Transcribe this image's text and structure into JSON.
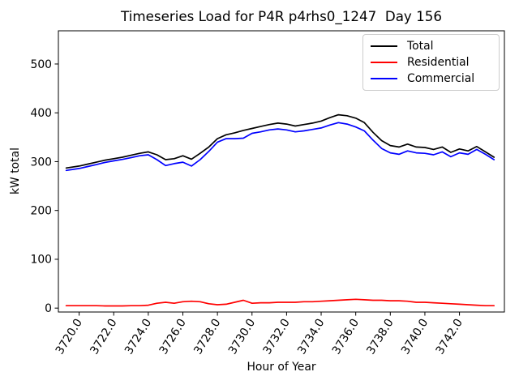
{
  "figure": {
    "background": "#ffffff"
  },
  "chart_data": {
    "type": "line",
    "title": "Timeseries Load for P4R p4rhs0_1247  Day 156",
    "xlabel": "Hour of Year",
    "ylabel": "kW total",
    "grid": false,
    "legend_position": "upper right",
    "xlim": [
      3718.8,
      3744.6
    ],
    "ylim": [
      -8,
      568
    ],
    "xticks": [
      3720,
      3722,
      3724,
      3726,
      3728,
      3730,
      3732,
      3734,
      3736,
      3738,
      3740,
      3742
    ],
    "xtick_labels": [
      "3720.0",
      "3722.0",
      "3724.0",
      "3726.0",
      "3728.0",
      "3730.0",
      "3732.0",
      "3734.0",
      "3736.0",
      "3738.0",
      "3740.0",
      "3742.0"
    ],
    "yticks": [
      0,
      100,
      200,
      300,
      400,
      500
    ],
    "ytick_labels": [
      "0",
      "100",
      "200",
      "300",
      "400",
      "500"
    ],
    "x": [
      3719.25,
      3720,
      3720.5,
      3721,
      3721.5,
      3722,
      3722.5,
      3723,
      3723.5,
      3724,
      3724.5,
      3725,
      3725.5,
      3726,
      3726.5,
      3727,
      3727.5,
      3728,
      3728.5,
      3729,
      3729.5,
      3730,
      3730.5,
      3731,
      3731.5,
      3732,
      3732.5,
      3733,
      3733.5,
      3734,
      3734.5,
      3735,
      3735.5,
      3736,
      3736.5,
      3737,
      3737.5,
      3738,
      3738.5,
      3739,
      3739.5,
      3740,
      3740.5,
      3741,
      3741.5,
      3742,
      3742.5,
      3743,
      3743.5,
      3744
    ],
    "series": [
      {
        "name": "Total",
        "color": "#000000",
        "values": [
          287,
          291,
          295,
          299,
          303,
          306,
          309,
          313,
          317,
          320,
          314,
          304,
          306,
          312,
          305,
          317,
          330,
          347,
          355,
          359,
          364,
          368,
          372,
          376,
          379,
          377,
          373,
          376,
          379,
          383,
          390,
          396,
          394,
          389,
          380,
          360,
          343,
          333,
          330,
          336,
          330,
          329,
          325,
          330,
          319,
          326,
          322,
          331,
          320,
          309
        ]
      },
      {
        "name": "Residential",
        "color": "#ff0000",
        "values": [
          5,
          5,
          5,
          5,
          4.5,
          4.5,
          4.5,
          5,
          5,
          6,
          10,
          12,
          10,
          13,
          14,
          13,
          9,
          7,
          8,
          12,
          16,
          10,
          11,
          11,
          12,
          12,
          12,
          13,
          13,
          14,
          15,
          16,
          17,
          18,
          17,
          16,
          16,
          15,
          15,
          14,
          12,
          12,
          11,
          10,
          9,
          8,
          7,
          6,
          5,
          5
        ]
      },
      {
        "name": "Commercial",
        "color": "#0000ff",
        "values": [
          282,
          286,
          290,
          294,
          298.5,
          301.5,
          304.5,
          308,
          312,
          314,
          304,
          292,
          296,
          299,
          291,
          304,
          321,
          340,
          347,
          347,
          348,
          358,
          361,
          365,
          367,
          365,
          361,
          363,
          366,
          369,
          375,
          380,
          377,
          371,
          363,
          344,
          327,
          318,
          315,
          322,
          318,
          317,
          314,
          320,
          310,
          318,
          315,
          325,
          315,
          304
        ]
      }
    ]
  }
}
